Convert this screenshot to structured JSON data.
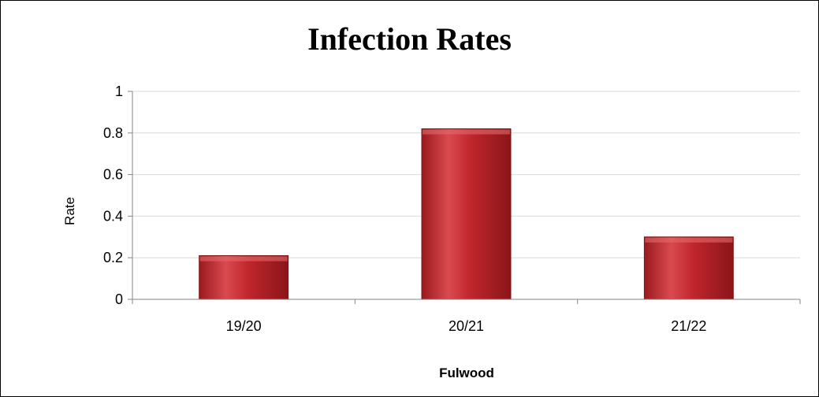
{
  "chart_data": {
    "type": "bar",
    "title": "Infection Rates",
    "xlabel": "Fulwood",
    "ylabel": "Rate",
    "categories": [
      "19/20",
      "20/21",
      "21/22"
    ],
    "values": [
      0.21,
      0.82,
      0.3
    ],
    "ylim": [
      0,
      1
    ],
    "yticks": [
      "0",
      "0.2",
      "0.4",
      "0.6",
      "0.8",
      "1"
    ],
    "ytick_values": [
      0,
      0.2,
      0.4,
      0.6,
      0.8,
      1
    ],
    "grid": true,
    "legend": "none",
    "colors": {
      "bar_fill": "#c0262c",
      "bar_highlight": "#e26a6a",
      "bar_shadow": "#7f1416",
      "gridline": "#d9d9d9",
      "axis": "#868686"
    }
  }
}
